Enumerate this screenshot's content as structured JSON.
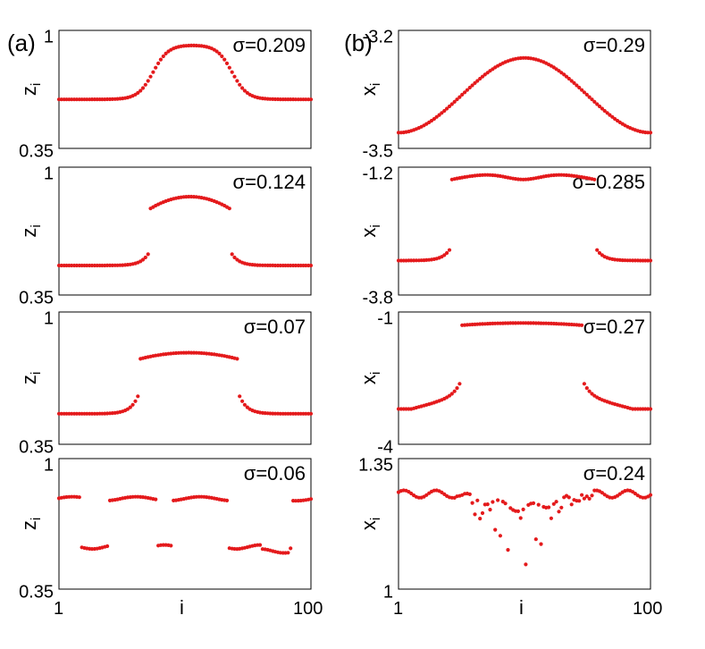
{
  "chart_data": {
    "type": "scatter",
    "panel_tags": [
      "(a)",
      "(b)"
    ],
    "x_tick_labels": [
      "1",
      "i",
      "100"
    ],
    "xlim": [
      1,
      100
    ],
    "panels": [
      {
        "id": "a1",
        "ylabel": "z",
        "ylabel_sub": "i",
        "annotation": "σ=0.209",
        "yticks": [
          "1",
          "0.35"
        ],
        "ylim": [
          0.35,
          1.0
        ],
        "color": "#e41a1c",
        "profile": {
          "kind": "plateau",
          "low": 0.62,
          "high": 0.92,
          "left": 38,
          "right": 69,
          "width": 3,
          "dip": 0.0
        }
      },
      {
        "id": "a2",
        "ylabel": "z",
        "ylabel_sub": "i",
        "annotation": "σ=0.124",
        "yticks": [
          "1",
          "0.35"
        ],
        "ylim": [
          0.35,
          1.0
        ],
        "color": "#e41a1c",
        "profile": {
          "kind": "jump",
          "low": 0.5,
          "high": 0.79,
          "left": 37,
          "right": 68,
          "peak": 0.85,
          "gap": 0.08
        }
      },
      {
        "id": "a3",
        "ylabel": "z",
        "ylabel_sub": "i",
        "annotation": "σ=0.07",
        "yticks": [
          "1",
          "0.35"
        ],
        "ylim": [
          0.35,
          1.0
        ],
        "color": "#e41a1c",
        "profile": {
          "kind": "jump",
          "low": 0.5,
          "high": 0.77,
          "left": 33,
          "right": 71,
          "peak": 0.8,
          "gap": 0.12
        }
      },
      {
        "id": "a4",
        "ylabel": "z",
        "ylabel_sub": "i",
        "annotation": "σ=0.06",
        "yticks": [
          "1",
          "0.35"
        ],
        "ylim": [
          0.35,
          1.0
        ],
        "color": "#e41a1c",
        "profile": {
          "kind": "twolevel",
          "upper": 0.8,
          "lower": 0.56
        }
      },
      {
        "id": "b1",
        "ylabel": "x",
        "ylabel_sub": "i",
        "annotation": "σ=0.29",
        "yticks": [
          "-3.2",
          "-3.5"
        ],
        "ylim": [
          -3.5,
          -3.2
        ],
        "color": "#e41a1c",
        "profile": {
          "kind": "cosine",
          "low": -3.46,
          "high": -3.27
        }
      },
      {
        "id": "b2",
        "ylabel": "x",
        "ylabel_sub": "i",
        "annotation": "σ=0.285",
        "yticks": [
          "-1.2",
          "-3.8"
        ],
        "ylim": [
          -3.8,
          -1.2
        ],
        "color": "#e41a1c",
        "profile": {
          "kind": "jump",
          "low": -3.1,
          "high": -1.45,
          "left": 22,
          "right": 78,
          "peak": -1.3,
          "gap": 0.3,
          "dip": 0.15
        }
      },
      {
        "id": "b3",
        "ylabel": "x",
        "ylabel_sub": "i",
        "annotation": "σ=0.27",
        "yticks": [
          "-1",
          "-4"
        ],
        "ylim": [
          -4,
          -1
        ],
        "color": "#e41a1c",
        "profile": {
          "kind": "jump",
          "low": -2.9,
          "high": -1.3,
          "left": 26,
          "right": 73,
          "peak": -1.25,
          "gap": 0.4,
          "sag": 0.3
        }
      },
      {
        "id": "b4",
        "ylabel": "x",
        "ylabel_sub": "i",
        "annotation": "σ=0.24",
        "yticks": [
          "1.35",
          "1"
        ],
        "ylim": [
          1,
          1.35
        ],
        "color": "#e41a1c",
        "profile": {
          "kind": "chaotic",
          "base": 1.255
        }
      }
    ]
  }
}
